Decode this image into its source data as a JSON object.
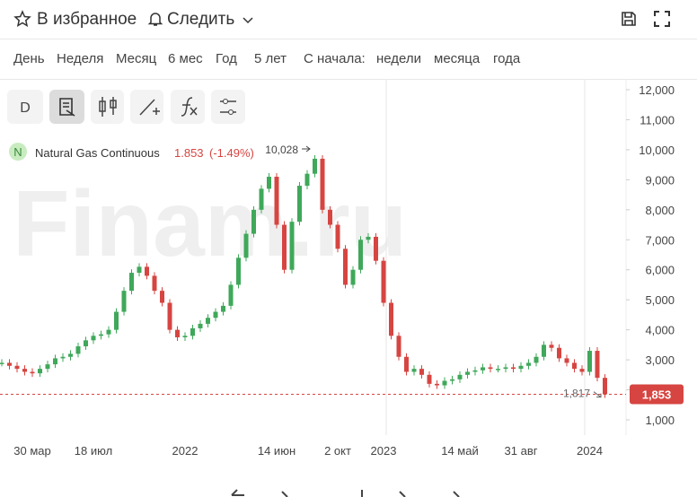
{
  "toolbar": {
    "favorite": "В избранное",
    "follow": "Следить"
  },
  "periods": {
    "items": [
      "День",
      "Неделя",
      "Месяц",
      "6 мес",
      "Год",
      "5 лет"
    ],
    "since_label": "С начала:",
    "since_items": [
      "недели",
      "месяца",
      "года"
    ]
  },
  "tools": {
    "period_button": "D"
  },
  "chart_data": {
    "type": "candlestick",
    "watermark": "Finam.ru",
    "legend": {
      "badge": "N",
      "name": "Natural Gas Continuous",
      "price": "1.853",
      "change": "(-1.49%)"
    },
    "up_color": "#3fa85a",
    "down_color": "#d64541",
    "categories": [
      null,
      null,
      null,
      null,
      "30 мар",
      null,
      null,
      null,
      null,
      null,
      null,
      null,
      "18 июл",
      null,
      null,
      null,
      null,
      null,
      null,
      null,
      null,
      null,
      null,
      null,
      "2022",
      null,
      null,
      null,
      null,
      null,
      null,
      null,
      null,
      null,
      null,
      null,
      "14 июн",
      null,
      null,
      null,
      null,
      null,
      null,
      null,
      "2 окт",
      null,
      null,
      null,
      null,
      null,
      "2023",
      null,
      null,
      null,
      null,
      null,
      null,
      null,
      null,
      null,
      "14 май",
      null,
      null,
      null,
      null,
      null,
      null,
      null,
      "31 авг",
      null,
      null,
      null,
      null,
      null,
      null,
      null,
      null,
      "2024",
      null,
      null
    ],
    "values": [
      2900,
      2800,
      2700,
      2600,
      2550,
      2700,
      2850,
      3050,
      3100,
      3200,
      3450,
      3650,
      3800,
      3850,
      4000,
      4600,
      5300,
      5900,
      6100,
      5800,
      5300,
      4900,
      4000,
      3750,
      3800,
      4050,
      4200,
      4400,
      4600,
      4800,
      5500,
      6400,
      7200,
      8000,
      8700,
      9100,
      7500,
      6000,
      7600,
      8800,
      9200,
      9700,
      8000,
      7500,
      6700,
      5500,
      6000,
      7000,
      7100,
      6300,
      4900,
      3800,
      3100,
      2600,
      2700,
      2500,
      2200,
      2150,
      2300,
      2350,
      2500,
      2600,
      2650,
      2750,
      2700,
      2700,
      2750,
      2700,
      2800,
      2900,
      3100,
      3500,
      3400,
      3050,
      2900,
      2700,
      2600,
      3300,
      2400,
      1853
    ],
    "ylim": [
      1000,
      12000
    ],
    "yticks": [
      {
        "value": 1000,
        "label": "1,000"
      },
      {
        "value": 2000,
        "label": "2,000"
      },
      {
        "value": 3000,
        "label": "3,000"
      },
      {
        "value": 4000,
        "label": "4,000"
      },
      {
        "value": 5000,
        "label": "5,000"
      },
      {
        "value": 6000,
        "label": "6,000"
      },
      {
        "value": 7000,
        "label": "7,000"
      },
      {
        "value": 8000,
        "label": "8,000"
      },
      {
        "value": 9000,
        "label": "9,000"
      },
      {
        "value": 10000,
        "label": "10,000"
      },
      {
        "value": 11000,
        "label": "11,000"
      },
      {
        "value": 12000,
        "label": "12,000"
      }
    ],
    "last_price": {
      "value": 1853,
      "label": "1,853"
    },
    "max_marker": {
      "value": 10028,
      "label": "10,028"
    },
    "min_marker": {
      "value": 1817,
      "label": "1,817"
    }
  }
}
